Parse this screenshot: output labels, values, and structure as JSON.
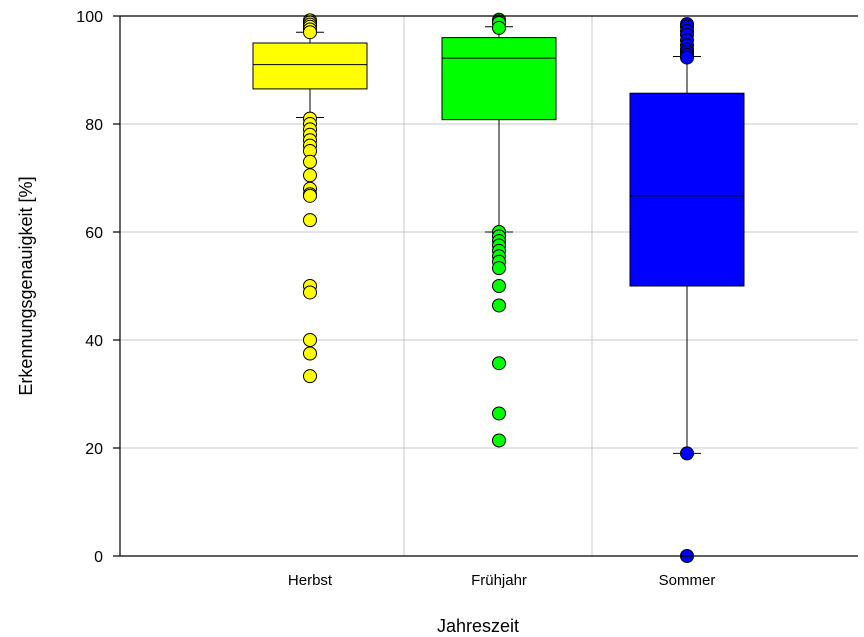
{
  "chart_data": {
    "type": "box",
    "xlabel": "Jahreszeit",
    "ylabel": "Erkennungsgenauigkeit [%]",
    "ylim": [
      0,
      100
    ],
    "yticks": [
      0,
      20,
      40,
      60,
      80,
      100
    ],
    "grid": true,
    "legend": "none",
    "categories": [
      "Herbst",
      "Frühjahr",
      "Sommer"
    ],
    "series": [
      {
        "color": "#ffff00",
        "whisker_low": 81.2,
        "q1": 86.5,
        "median": 91.0,
        "q3": 95.0,
        "whisker_high": 97.0,
        "outliers": [
          99.2,
          98.8,
          98.4,
          98.0,
          97.5,
          97.0,
          81.0,
          80.0,
          79.0,
          78.0,
          77.0,
          76.0,
          75.0,
          73.0,
          70.5,
          68.0,
          67.0,
          66.7,
          62.2,
          50.0,
          48.8,
          40.0,
          37.5,
          33.3
        ]
      },
      {
        "color": "#00ff00",
        "whisker_low": 60.0,
        "q1": 80.8,
        "median": 92.2,
        "q3": 96.0,
        "whisker_high": 98.0,
        "outliers": [
          99.3,
          99.0,
          98.7,
          97.8,
          60.0,
          59.2,
          58.3,
          57.5,
          56.5,
          55.5,
          54.5,
          53.3,
          50.0,
          46.4,
          35.7,
          26.4,
          21.4
        ]
      },
      {
        "color": "#0000ff",
        "whisker_low": 19.0,
        "q1": 50.0,
        "median": 66.7,
        "q3": 85.7,
        "whisker_high": 92.5,
        "outliers": [
          98.5,
          98.0,
          97.2,
          96.5,
          95.5,
          94.6,
          93.8,
          93.3,
          92.8,
          92.3,
          19.0,
          0.0
        ]
      }
    ]
  }
}
